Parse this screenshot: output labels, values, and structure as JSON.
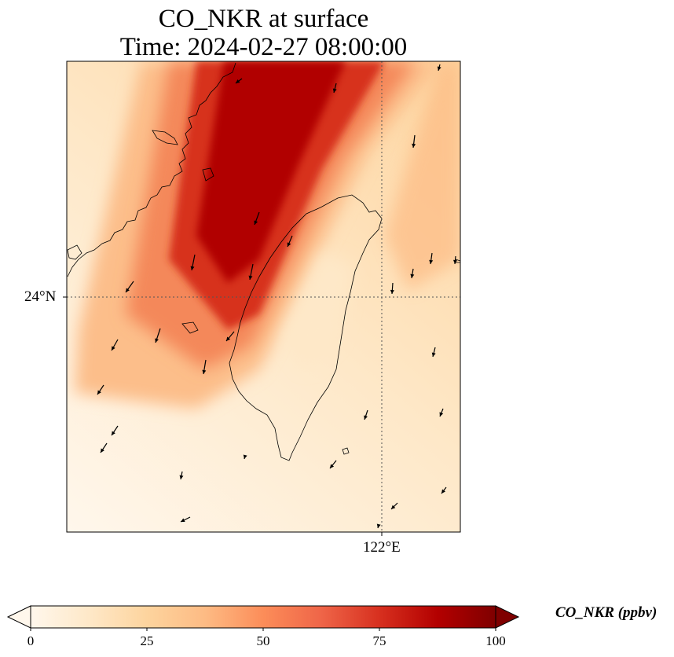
{
  "title": {
    "line1": "CO_NKR at surface",
    "line2": "Time: 2024-02-27 08:00:00"
  },
  "map": {
    "projection": "lat-lon",
    "region": "Taiwan Strait",
    "gridlines": "dotted",
    "lat_label": "24°N",
    "lon_label": "122°E",
    "field": "CO_NKR concentration (shaded)",
    "vectors": "wind arrows",
    "plume_direction": "NE to SW",
    "max_value_ppbv": 100
  },
  "colorbar": {
    "cmap": "OrRd",
    "ticks": [
      "0",
      "25",
      "50",
      "75",
      "100"
    ],
    "min": 0,
    "max": 100,
    "extend": "both",
    "label": "CO_NKR (ppbv)"
  },
  "colors": {
    "c0": "#fff7ec",
    "c25": "#fdd49e",
    "c50": "#fc8d59",
    "c75": "#d7301f",
    "c100": "#7f0000"
  }
}
